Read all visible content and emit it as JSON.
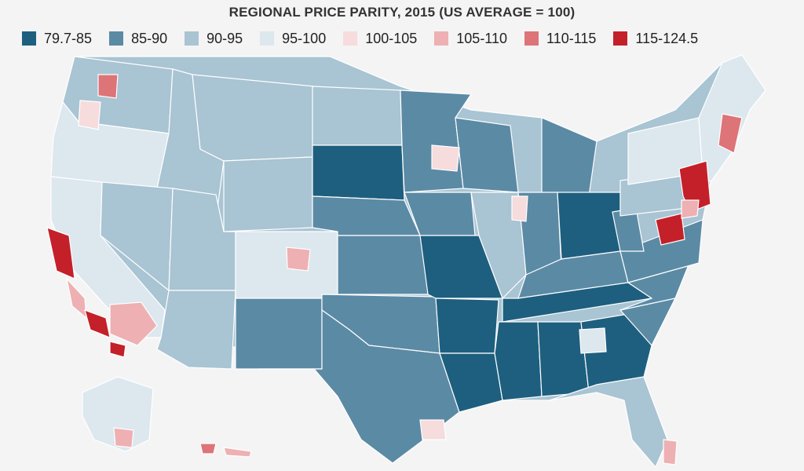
{
  "title": "REGIONAL PRICE PARITY, 2015 (US AVERAGE = 100)",
  "legend": [
    {
      "label": "79.7-85",
      "color": "#1e5f7f"
    },
    {
      "label": "85-90",
      "color": "#5b8aa5"
    },
    {
      "label": "90-95",
      "color": "#a9c4d3"
    },
    {
      "label": "95-100",
      "color": "#dce7ee"
    },
    {
      "label": "100-105",
      "color": "#f6dcdd"
    },
    {
      "label": "105-110",
      "color": "#eeb0b2"
    },
    {
      "label": "110-115",
      "color": "#dd7478"
    },
    {
      "label": "115-124.5",
      "color": "#c4202a"
    }
  ],
  "colors": {
    "background": "#f4f4f4",
    "state_border": "#ffffff"
  }
}
